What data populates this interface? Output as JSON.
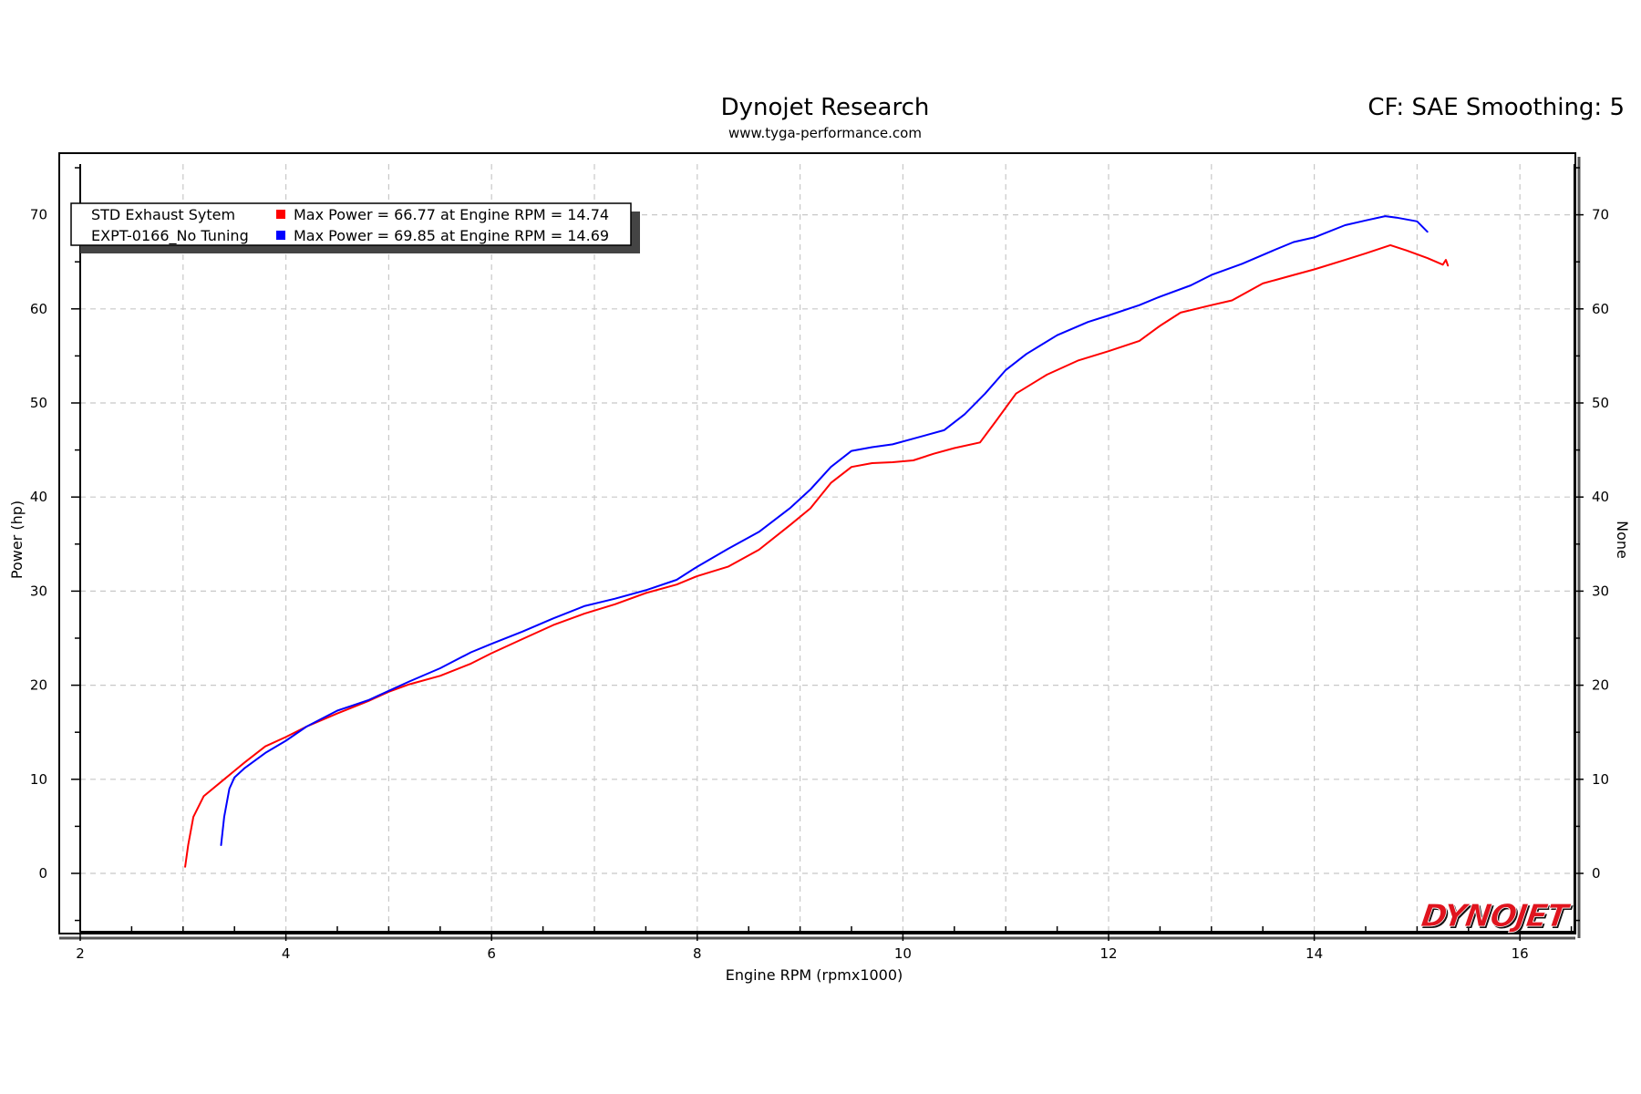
{
  "chart_data": {
    "type": "line",
    "title": "Dynojet Research",
    "subtitle": "www.tyga-performance.com",
    "corner_text": "CF: SAE Smoothing: 5",
    "xlabel": "Engine RPM (rpmx1000)",
    "ylabel": "Power (hp)",
    "y2label": "None",
    "xlim": [
      2,
      16.5
    ],
    "ylim": [
      -6,
      76
    ],
    "xticks": [
      2,
      4,
      6,
      8,
      10,
      12,
      14,
      16
    ],
    "yticks": [
      0,
      10,
      20,
      30,
      40,
      50,
      60,
      70
    ],
    "grid": true,
    "legend": {
      "position": "top-left",
      "entries": [
        {
          "name": "STD Exhaust Sytem",
          "text": "Max Power = 66.77 at Engine RPM = 14.74",
          "color": "#ff0000"
        },
        {
          "name": "EXPT-0166_No Tuning",
          "text": "Max Power = 69.85 at Engine RPM = 14.69",
          "color": "#0000ff"
        }
      ]
    },
    "series": [
      {
        "name": "STD Exhaust Sytem",
        "color": "#ff0000",
        "x": [
          3.02,
          3.05,
          3.1,
          3.2,
          3.4,
          3.6,
          3.8,
          4.0,
          4.2,
          4.5,
          4.8,
          5.0,
          5.2,
          5.5,
          5.8,
          6.0,
          6.3,
          6.6,
          6.9,
          7.2,
          7.5,
          7.8,
          8.0,
          8.3,
          8.6,
          8.9,
          9.1,
          9.3,
          9.5,
          9.7,
          9.9,
          10.1,
          10.3,
          10.5,
          10.75,
          10.9,
          11.1,
          11.4,
          11.7,
          12.0,
          12.3,
          12.5,
          12.7,
          13.0,
          13.2,
          13.5,
          13.8,
          14.0,
          14.3,
          14.5,
          14.74,
          14.9,
          15.1,
          15.25,
          15.28,
          15.3
        ],
        "values": [
          0.7,
          3,
          6,
          8.2,
          10,
          11.8,
          13.5,
          14.5,
          15.6,
          17,
          18.3,
          19.3,
          20.1,
          21,
          22.3,
          23.4,
          24.9,
          26.4,
          27.6,
          28.6,
          29.8,
          30.7,
          31.6,
          32.6,
          34.4,
          37,
          38.8,
          41.5,
          43.2,
          43.6,
          43.7,
          43.9,
          44.6,
          45.2,
          45.8,
          48,
          51,
          53,
          54.5,
          55.5,
          56.6,
          58.2,
          59.6,
          60.4,
          60.9,
          62.7,
          63.6,
          64.2,
          65.2,
          65.9,
          66.77,
          66.2,
          65.4,
          64.7,
          65.2,
          64.6
        ]
      },
      {
        "name": "EXPT-0166_No Tuning",
        "color": "#0000ff",
        "x": [
          3.37,
          3.4,
          3.45,
          3.5,
          3.6,
          3.8,
          4.0,
          4.2,
          4.5,
          4.8,
          5.0,
          5.2,
          5.5,
          5.8,
          6.0,
          6.3,
          6.6,
          6.9,
          7.2,
          7.5,
          7.8,
          8.0,
          8.3,
          8.6,
          8.9,
          9.1,
          9.3,
          9.5,
          9.7,
          9.9,
          10.1,
          10.4,
          10.6,
          10.8,
          11.0,
          11.2,
          11.5,
          11.8,
          12.0,
          12.3,
          12.5,
          12.8,
          13.0,
          13.3,
          13.6,
          13.8,
          14.0,
          14.3,
          14.5,
          14.69,
          14.8,
          15.0,
          15.1
        ],
        "values": [
          3,
          6,
          9,
          10.2,
          11.2,
          12.8,
          14.1,
          15.6,
          17.3,
          18.4,
          19.4,
          20.4,
          21.8,
          23.5,
          24.4,
          25.7,
          27.1,
          28.4,
          29.2,
          30.1,
          31.2,
          32.6,
          34.5,
          36.3,
          38.8,
          40.8,
          43.2,
          44.9,
          45.3,
          45.6,
          46.2,
          47.1,
          48.8,
          51,
          53.5,
          55.2,
          57.2,
          58.6,
          59.3,
          60.4,
          61.3,
          62.5,
          63.6,
          64.8,
          66.2,
          67.1,
          67.6,
          68.9,
          69.4,
          69.85,
          69.7,
          69.3,
          68.2
        ]
      }
    ]
  },
  "logo": {
    "text": "DYNOJET"
  }
}
